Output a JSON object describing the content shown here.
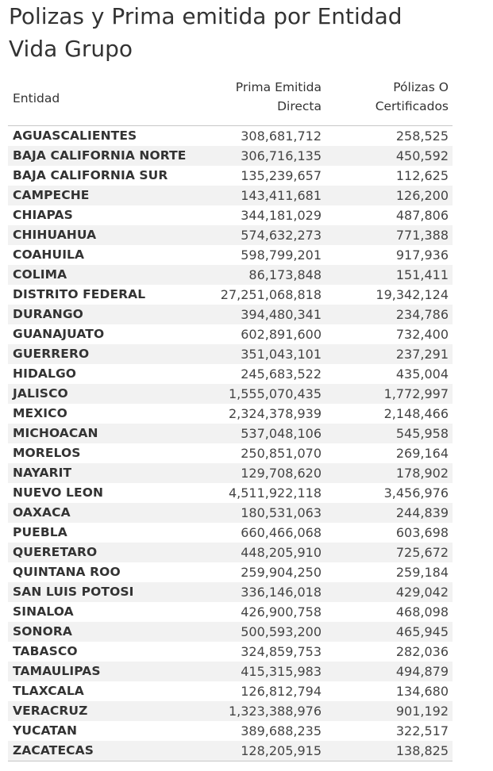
{
  "title_line1": "Polizas y Prima emitida por Entidad",
  "title_line2": "Vida Grupo",
  "chart_data": {
    "type": "table",
    "columns": [
      "Entidad",
      "Prima Emitida Directa",
      "Pólizas O Certificados"
    ],
    "header": {
      "entidad": "Entidad",
      "prima_line1": "Prima Emitida",
      "prima_line2": "Directa",
      "polizas_line1": "Pólizas O",
      "polizas_line2": "Certificados"
    },
    "rows": [
      {
        "entidad": "AGUASCALIENTES",
        "prima": "308,681,712",
        "polizas": "258,525"
      },
      {
        "entidad": "BAJA CALIFORNIA NORTE",
        "prima": "306,716,135",
        "polizas": "450,592"
      },
      {
        "entidad": "BAJA CALIFORNIA SUR",
        "prima": "135,239,657",
        "polizas": "112,625"
      },
      {
        "entidad": "CAMPECHE",
        "prima": "143,411,681",
        "polizas": "126,200"
      },
      {
        "entidad": "CHIAPAS",
        "prima": "344,181,029",
        "polizas": "487,806"
      },
      {
        "entidad": "CHIHUAHUA",
        "prima": "574,632,273",
        "polizas": "771,388"
      },
      {
        "entidad": "COAHUILA",
        "prima": "598,799,201",
        "polizas": "917,936"
      },
      {
        "entidad": "COLIMA",
        "prima": "86,173,848",
        "polizas": "151,411"
      },
      {
        "entidad": "DISTRITO FEDERAL",
        "prima": "27,251,068,818",
        "polizas": "19,342,124"
      },
      {
        "entidad": "DURANGO",
        "prima": "394,480,341",
        "polizas": "234,786"
      },
      {
        "entidad": "GUANAJUATO",
        "prima": "602,891,600",
        "polizas": "732,400"
      },
      {
        "entidad": "GUERRERO",
        "prima": "351,043,101",
        "polizas": "237,291"
      },
      {
        "entidad": "HIDALGO",
        "prima": "245,683,522",
        "polizas": "435,004"
      },
      {
        "entidad": "JALISCO",
        "prima": "1,555,070,435",
        "polizas": "1,772,997"
      },
      {
        "entidad": "MEXICO",
        "prima": "2,324,378,939",
        "polizas": "2,148,466"
      },
      {
        "entidad": "MICHOACAN",
        "prima": "537,048,106",
        "polizas": "545,958"
      },
      {
        "entidad": "MORELOS",
        "prima": "250,851,070",
        "polizas": "269,164"
      },
      {
        "entidad": "NAYARIT",
        "prima": "129,708,620",
        "polizas": "178,902"
      },
      {
        "entidad": "NUEVO LEON",
        "prima": "4,511,922,118",
        "polizas": "3,456,976"
      },
      {
        "entidad": "OAXACA",
        "prima": "180,531,063",
        "polizas": "244,839"
      },
      {
        "entidad": "PUEBLA",
        "prima": "660,466,068",
        "polizas": "603,698"
      },
      {
        "entidad": "QUERETARO",
        "prima": "448,205,910",
        "polizas": "725,672"
      },
      {
        "entidad": "QUINTANA ROO",
        "prima": "259,904,250",
        "polizas": "259,184"
      },
      {
        "entidad": "SAN LUIS POTOSI",
        "prima": "336,146,018",
        "polizas": "429,042"
      },
      {
        "entidad": "SINALOA",
        "prima": "426,900,758",
        "polizas": "468,098"
      },
      {
        "entidad": "SONORA",
        "prima": "500,593,200",
        "polizas": "465,945"
      },
      {
        "entidad": "TABASCO",
        "prima": "324,859,753",
        "polizas": "282,036"
      },
      {
        "entidad": "TAMAULIPAS",
        "prima": "415,315,983",
        "polizas": "494,879"
      },
      {
        "entidad": "TLAXCALA",
        "prima": "126,812,794",
        "polizas": "134,680"
      },
      {
        "entidad": "VERACRUZ",
        "prima": "1,323,388,976",
        "polizas": "901,192"
      },
      {
        "entidad": "YUCATAN",
        "prima": "389,688,235",
        "polizas": "322,517"
      },
      {
        "entidad": "ZACATECAS",
        "prima": "128,205,915",
        "polizas": "138,825"
      }
    ]
  },
  "colors": {
    "stripe": "#f2f2f2",
    "rule": "#c8c8c8",
    "text": "#333333"
  }
}
